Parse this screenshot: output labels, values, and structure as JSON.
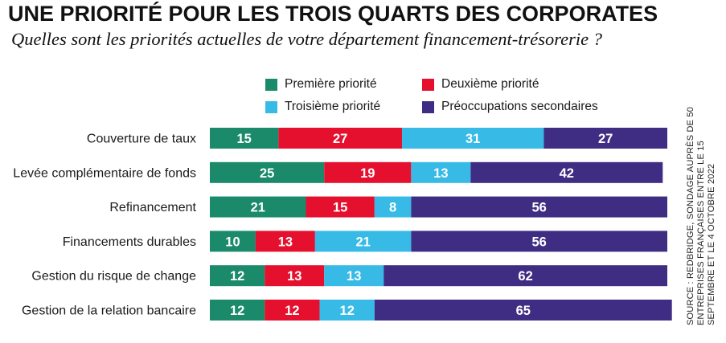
{
  "title": "UNE PRIORITÉ POUR LES TROIS QUARTS DES CORPORATES",
  "subtitle": "Quelles sont les priorités actuelles de votre département financement-trésorerie ?",
  "source": "SOURCE : REDBRIDGE, SONDAGE AUPRÈS DE 50 ENTREPRISES FRANÇAISES ENTRE LE 15 SEPTEMBRE ET LE 4 OCTOBRE 2022",
  "colors": {
    "premiere": "#1a8a6a",
    "deuxieme": "#e4102e",
    "troisieme": "#37bbe6",
    "secondaires": "#3f2d83"
  },
  "chart_data": {
    "type": "bar",
    "orientation": "horizontal",
    "stacked": true,
    "legend_placement": "top",
    "grid": false,
    "xlim": [
      0,
      100
    ],
    "categories": [
      "Couverture de taux",
      "Levée complémentaire de fonds",
      "Refinancement",
      "Financements durables",
      "Gestion du risque de change",
      "Gestion de la relation bancaire"
    ],
    "series": [
      {
        "name": "Première priorité",
        "color": "#1a8a6a",
        "values": [
          15,
          25,
          21,
          10,
          12,
          12
        ]
      },
      {
        "name": "Deuxième priorité",
        "color": "#e4102e",
        "values": [
          27,
          19,
          15,
          13,
          13,
          12
        ]
      },
      {
        "name": "Troisième priorité",
        "color": "#37bbe6",
        "values": [
          31,
          13,
          8,
          21,
          13,
          12
        ]
      },
      {
        "name": "Préoccupations secondaires",
        "color": "#3f2d83",
        "values": [
          27,
          42,
          56,
          56,
          62,
          65
        ]
      }
    ]
  }
}
